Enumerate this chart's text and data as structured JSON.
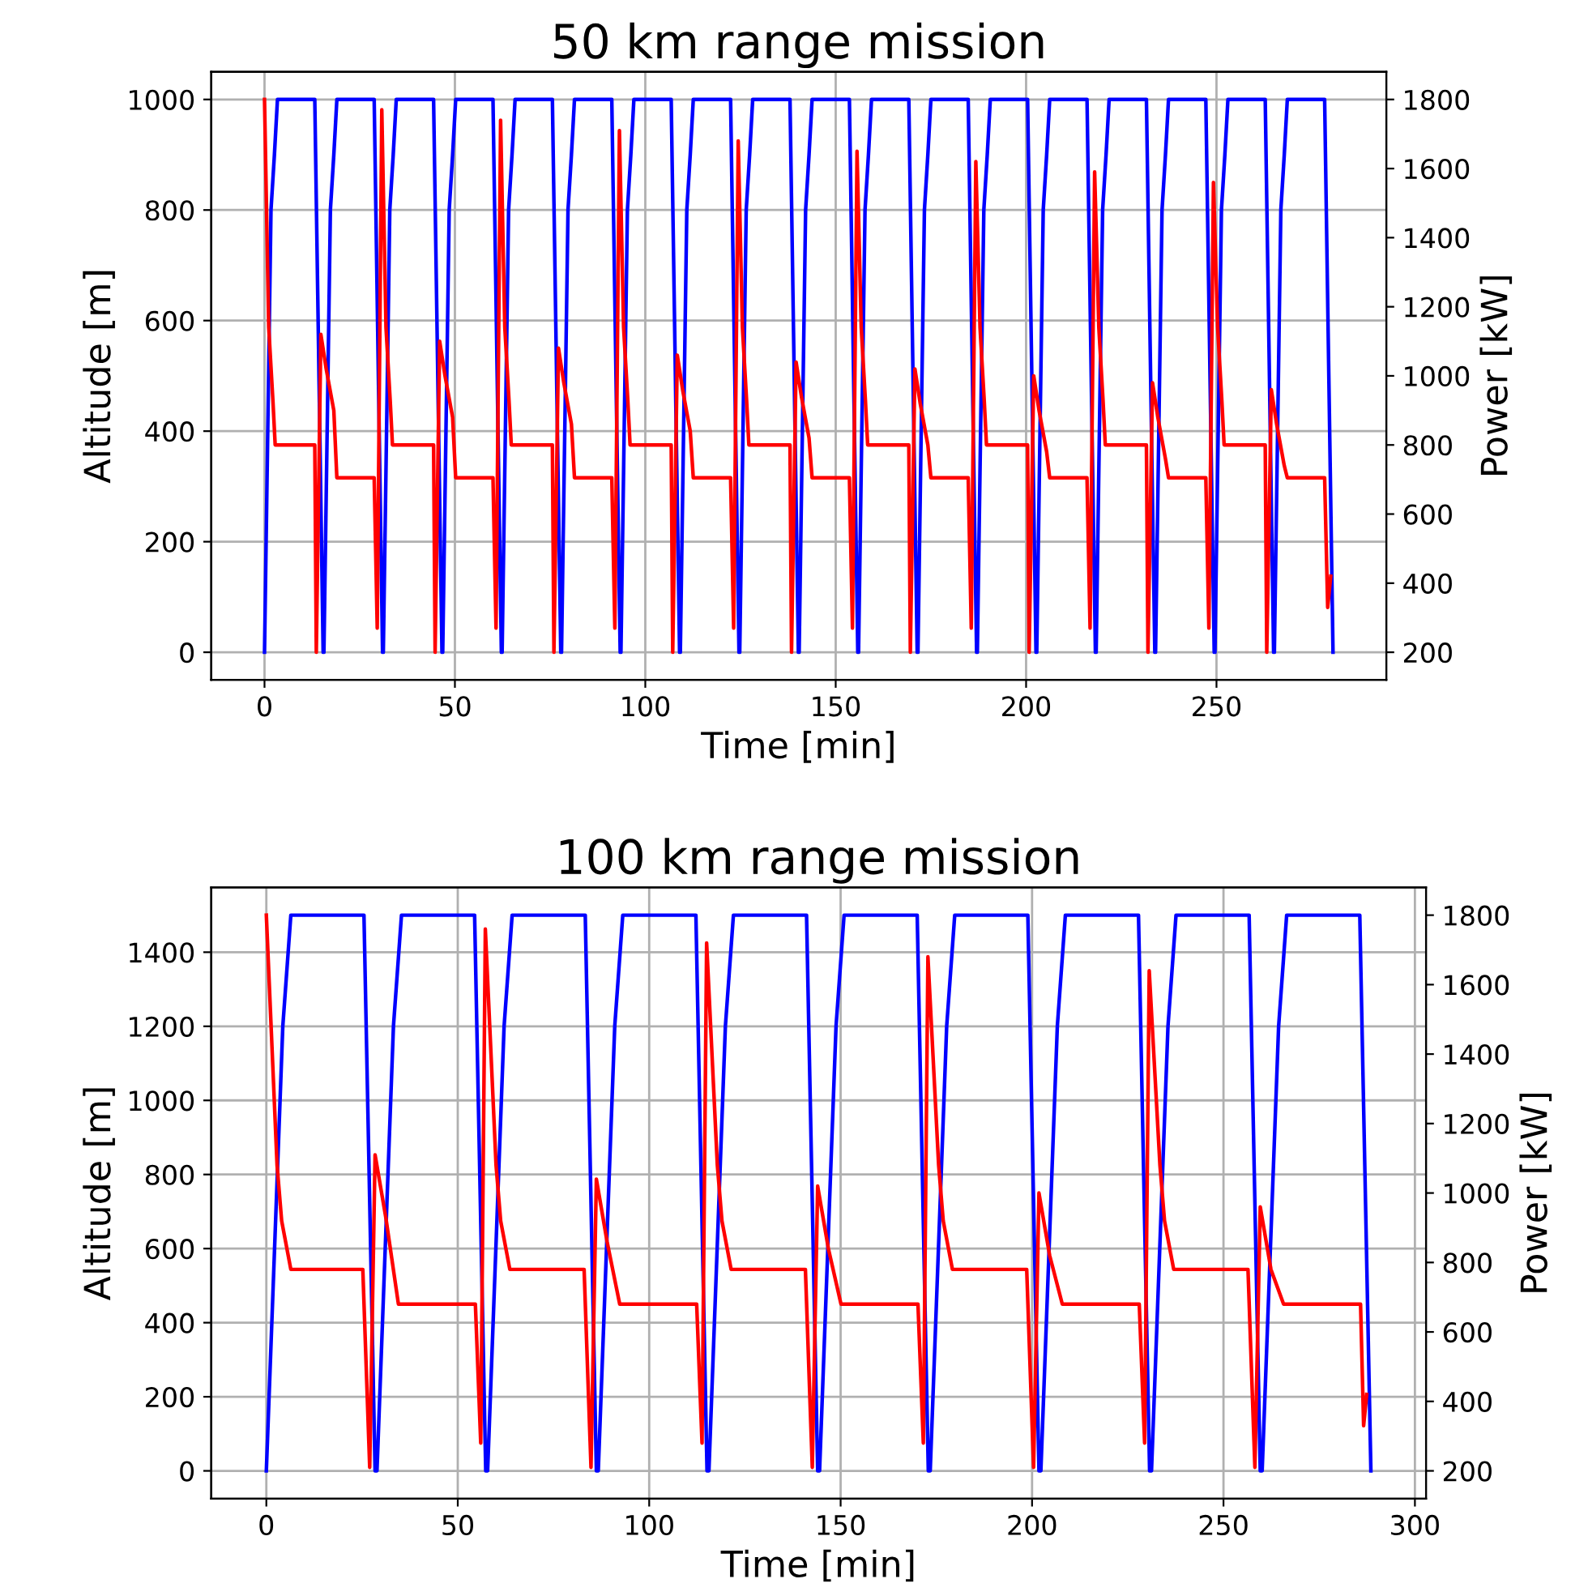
{
  "chart_data": [
    {
      "type": "line",
      "title": "50 km range mission",
      "xlabel": "Time [min]",
      "ylabel": "Altitude [m]",
      "y2label": "Power [kW]",
      "xlim": [
        -14,
        294.6
      ],
      "xticks": [
        0,
        50,
        100,
        150,
        200,
        250
      ],
      "ylim": [
        -50,
        1050
      ],
      "yticks": [
        0,
        200,
        400,
        600,
        800,
        1000
      ],
      "y2lim": [
        120,
        1880
      ],
      "y2ticks": [
        200,
        400,
        600,
        800,
        1000,
        1200,
        1400,
        1600,
        1800
      ],
      "grid": true,
      "series": [
        {
          "color": "#0000ff",
          "axis": "y",
          "x": [
            0,
            1.7,
            2.6,
            3.4,
            13.2,
            15.4,
            15.6,
            17.3,
            18.2,
            19.0,
            28.8,
            31.0,
            31.2,
            32.9,
            33.8,
            34.6,
            44.4,
            46.6,
            46.8,
            48.5,
            49.4,
            50.2,
            60.0,
            62.2,
            62.4,
            64.1,
            65.0,
            65.8,
            75.6,
            77.8,
            78.0,
            79.7,
            80.6,
            81.4,
            91.2,
            93.4,
            93.6,
            95.3,
            96.2,
            97.0,
            106.8,
            109.0,
            109.2,
            110.9,
            111.8,
            112.6,
            122.4,
            124.6,
            124.8,
            126.5,
            127.4,
            128.2,
            138.0,
            140.2,
            140.4,
            142.1,
            143.0,
            143.8,
            153.6,
            155.8,
            156.0,
            157.7,
            158.6,
            159.4,
            169.2,
            171.4,
            171.6,
            173.3,
            174.2,
            175.0,
            184.8,
            187.0,
            187.2,
            188.9,
            189.8,
            190.6,
            200.4,
            202.6,
            202.8,
            204.5,
            205.4,
            206.2,
            216.0,
            218.2,
            218.4,
            220.1,
            221.0,
            221.8,
            231.6,
            233.8,
            234.0,
            235.7,
            236.6,
            237.4,
            247.2,
            249.4,
            249.6,
            251.3,
            252.2,
            253.0,
            262.8,
            265.0,
            265.2,
            266.9,
            267.8,
            268.6,
            278.4,
            280.6
          ],
          "values": [
            0,
            800,
            900,
            1000,
            1000,
            0,
            0,
            800,
            900,
            1000,
            1000,
            0,
            0,
            800,
            900,
            1000,
            1000,
            0,
            0,
            800,
            900,
            1000,
            1000,
            0,
            0,
            800,
            900,
            1000,
            1000,
            0,
            0,
            800,
            900,
            1000,
            1000,
            0,
            0,
            800,
            900,
            1000,
            1000,
            0,
            0,
            800,
            900,
            1000,
            1000,
            0,
            0,
            800,
            900,
            1000,
            1000,
            0,
            0,
            800,
            900,
            1000,
            1000,
            0,
            0,
            800,
            900,
            1000,
            1000,
            0,
            0,
            800,
            900,
            1000,
            1000,
            0,
            0,
            800,
            900,
            1000,
            1000,
            0,
            0,
            800,
            900,
            1000,
            1000,
            0,
            0,
            800,
            900,
            1000,
            1000,
            0,
            0,
            800,
            900,
            1000,
            1000,
            0,
            0,
            800,
            900,
            1000,
            1000,
            0,
            0,
            800,
            900,
            1000,
            1000,
            0
          ]
        },
        {
          "color": "#ff0000",
          "axis": "y2",
          "x": [
            0,
            1.1,
            2.2,
            2.8,
            13.2,
            13.6,
            14.8,
            16.2,
            18.2,
            19.0,
            28.8,
            29.6,
            30.8,
            31.9,
            33.0,
            33.6,
            44.4,
            44.8,
            46.0,
            47.4,
            49.4,
            50.2,
            60.0,
            60.8,
            62.0,
            63.1,
            64.2,
            64.8,
            75.6,
            76.0,
            77.2,
            78.6,
            80.6,
            81.4,
            91.2,
            92.0,
            93.2,
            94.3,
            95.4,
            96.0,
            106.8,
            107.2,
            108.4,
            109.8,
            111.8,
            112.6,
            122.4,
            123.2,
            124.4,
            125.5,
            126.6,
            127.2,
            138.0,
            138.4,
            139.6,
            141.0,
            143.0,
            143.8,
            153.6,
            154.4,
            155.6,
            156.7,
            157.8,
            158.4,
            169.2,
            169.6,
            170.8,
            172.2,
            174.2,
            175.0,
            184.8,
            185.6,
            186.8,
            187.9,
            189.0,
            189.6,
            200.4,
            200.8,
            202.0,
            203.4,
            205.4,
            206.2,
            216.0,
            216.8,
            218.0,
            219.1,
            220.2,
            220.8,
            231.6,
            232.0,
            233.2,
            234.6,
            236.6,
            237.4,
            247.2,
            248.0,
            249.2,
            250.3,
            251.4,
            252.0,
            262.8,
            263.2,
            264.4,
            265.8,
            267.8,
            268.6,
            278.4,
            279.2,
            280.0
          ],
          "values": [
            1800,
            1140,
            930,
            800,
            800,
            200,
            1120,
            1020,
            900,
            705,
            705,
            270,
            1770,
            1140,
            930,
            800,
            800,
            200,
            1100,
            1000,
            880,
            705,
            705,
            270,
            1740,
            1140,
            930,
            800,
            800,
            200,
            1080,
            980,
            860,
            705,
            705,
            270,
            1710,
            1140,
            930,
            800,
            800,
            200,
            1060,
            960,
            840,
            705,
            705,
            270,
            1680,
            1140,
            930,
            800,
            800,
            200,
            1040,
            940,
            820,
            705,
            705,
            270,
            1650,
            1140,
            930,
            800,
            800,
            200,
            1020,
            920,
            800,
            705,
            705,
            270,
            1620,
            1140,
            930,
            800,
            800,
            200,
            1000,
            900,
            780,
            705,
            705,
            270,
            1590,
            1140,
            930,
            800,
            800,
            200,
            980,
            880,
            760,
            705,
            705,
            270,
            1560,
            1140,
            930,
            800,
            800,
            200,
            960,
            860,
            740,
            705,
            705,
            330,
            420
          ]
        }
      ]
    },
    {
      "type": "line",
      "title": "100 km range mission",
      "xlabel": "Time [min]",
      "ylabel": "Altitude [m]",
      "y2label": "Power [kW]",
      "xlim": [
        -14.4,
        302.9
      ],
      "xticks": [
        0,
        50,
        100,
        150,
        200,
        250,
        300
      ],
      "ylim": [
        -75,
        1575
      ],
      "yticks": [
        0,
        200,
        400,
        600,
        800,
        1000,
        1200,
        1400
      ],
      "y2lim": [
        120,
        1880
      ],
      "y2ticks": [
        200,
        400,
        600,
        800,
        1000,
        1200,
        1400,
        1600,
        1800
      ],
      "grid": true,
      "series": [
        {
          "color": "#0000ff",
          "axis": "y",
          "x": [
            0,
            4.3,
            5.7,
            6.4,
            25.5,
            28.4,
            28.9,
            33.2,
            34.6,
            35.3,
            54.4,
            57.3,
            57.8,
            62.1,
            63.5,
            64.2,
            83.3,
            86.2,
            86.7,
            91.0,
            92.4,
            93.1,
            112.2,
            115.1,
            115.6,
            119.9,
            121.3,
            122.0,
            141.1,
            144.0,
            144.5,
            148.8,
            150.2,
            150.9,
            170.0,
            172.9,
            173.4,
            177.7,
            179.1,
            179.8,
            198.9,
            201.8,
            202.3,
            206.6,
            208.0,
            208.7,
            227.8,
            230.7,
            231.2,
            235.5,
            236.9,
            237.6,
            256.7,
            259.6,
            260.1,
            264.4,
            265.8,
            266.5,
            285.6,
            288.5
          ],
          "values": [
            0,
            1200,
            1400,
            1500,
            1500,
            0,
            0,
            1200,
            1400,
            1500,
            1500,
            0,
            0,
            1200,
            1400,
            1500,
            1500,
            0,
            0,
            1200,
            1400,
            1500,
            1500,
            0,
            0,
            1200,
            1400,
            1500,
            1500,
            0,
            0,
            1200,
            1400,
            1500,
            1500,
            0,
            0,
            1200,
            1400,
            1500,
            1500,
            0,
            0,
            1200,
            1400,
            1500,
            1500,
            0,
            0,
            1200,
            1400,
            1500,
            1500,
            0,
            0,
            1200,
            1400,
            1500,
            1500,
            0
          ]
        },
        {
          "color": "#ff0000",
          "axis": "y2",
          "x": [
            0,
            2.8,
            4.0,
            6.4,
            25.2,
            27.0,
            28.4,
            31.2,
            34.5,
            54.6,
            56.0,
            57.2,
            60.0,
            61.2,
            63.6,
            83.0,
            84.8,
            86.2,
            89.0,
            92.3,
            112.4,
            113.8,
            115.0,
            117.8,
            119.0,
            121.4,
            140.8,
            142.6,
            144.0,
            146.8,
            150.1,
            170.2,
            171.6,
            172.8,
            175.6,
            176.8,
            179.2,
            198.6,
            200.4,
            201.8,
            204.6,
            207.9,
            228.0,
            229.4,
            230.6,
            233.4,
            234.6,
            237.0,
            256.4,
            258.2,
            259.6,
            262.4,
            265.7,
            285.8,
            286.6,
            287.4
          ],
          "values": [
            1800,
            1080,
            920,
            780,
            780,
            210,
            1110,
            930,
            680,
            680,
            280,
            1760,
            1080,
            920,
            780,
            780,
            210,
            1040,
            860,
            680,
            680,
            280,
            1720,
            1080,
            920,
            780,
            780,
            210,
            1020,
            840,
            680,
            680,
            280,
            1680,
            1080,
            920,
            780,
            780,
            210,
            1000,
            820,
            680,
            680,
            280,
            1640,
            1080,
            920,
            780,
            780,
            210,
            960,
            780,
            680,
            680,
            330,
            420
          ]
        }
      ]
    }
  ]
}
